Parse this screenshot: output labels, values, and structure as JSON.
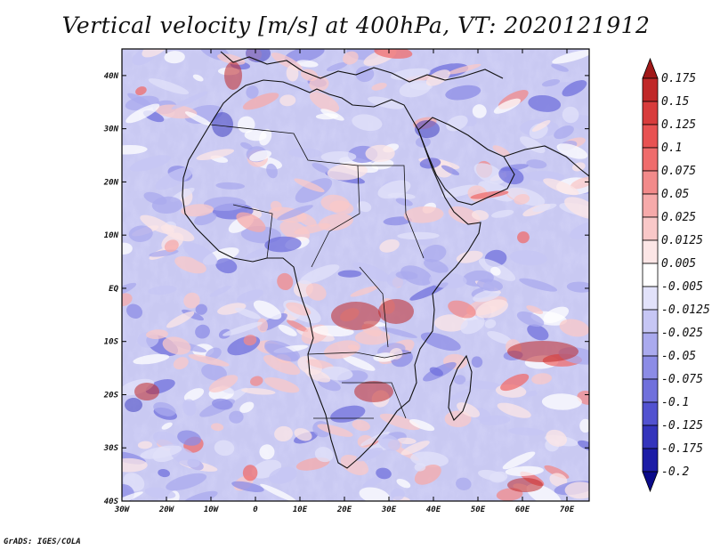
{
  "title": "Vertical velocity [m/s] at 400hPa, VT: 2020121912",
  "credit": "GrADS: IGES/COLA",
  "map": {
    "lat_labels": [
      "40N",
      "30N",
      "20N",
      "10N",
      "EQ",
      "10S",
      "20S",
      "30S",
      "40S"
    ],
    "lon_labels": [
      "30W",
      "20W",
      "10W",
      "0",
      "10E",
      "20E",
      "30E",
      "40E",
      "50E",
      "60E",
      "70E"
    ],
    "lat_range": [
      -40,
      45
    ],
    "lon_range": [
      -30,
      75
    ]
  },
  "colorbar": {
    "labels": [
      "0.175",
      "0.15",
      "0.125",
      "0.1",
      "0.075",
      "0.05",
      "0.025",
      "0.0125",
      "0.005",
      "-0.005",
      "-0.0125",
      "-0.025",
      "-0.05",
      "-0.075",
      "-0.1",
      "-0.125",
      "-0.175",
      "-0.2"
    ],
    "colors": [
      "#a01818",
      "#c02828",
      "#d83c3c",
      "#e85252",
      "#ef6c6c",
      "#f28a8a",
      "#f6aaaa",
      "#f9c8c8",
      "#fce6e6",
      "#ffffff",
      "#e2e2fa",
      "#c6c6f4",
      "#aaaaee",
      "#8c8ce6",
      "#7070dc",
      "#5252d0",
      "#3434bc",
      "#1c1ca6",
      "#0a0a8a"
    ]
  },
  "colors": {
    "land_outline": "#111111",
    "frame": "#000000"
  }
}
